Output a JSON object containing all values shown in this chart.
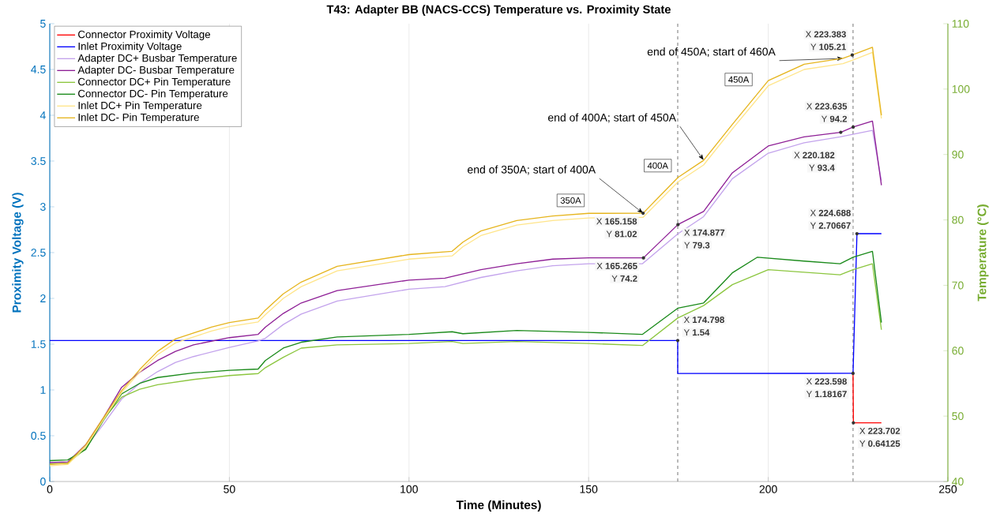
{
  "chart_data": {
    "type": "line",
    "title": "T43: Adapter BB (NACS-CCS) Temperature vs. Proximity State",
    "xlabel": "Time (Minutes)",
    "ylabel": "Proximity Voltage (V)",
    "y2label": "Temperature (°C)",
    "xlim": [
      0,
      250
    ],
    "ylim": [
      0,
      5
    ],
    "y2lim": [
      40,
      110
    ],
    "xticks": [
      0,
      50,
      100,
      150,
      200,
      250
    ],
    "yticks": [
      0,
      0.5,
      1,
      1.5,
      2,
      2.5,
      3,
      3.5,
      4,
      4.5,
      5
    ],
    "y2ticks": [
      40,
      50,
      60,
      70,
      80,
      90,
      100,
      110
    ],
    "grid": "x",
    "legend": "top left",
    "series": [
      {
        "name": "Connector Proximity Voltage",
        "color": "#ff0000",
        "x": [
          223.598,
          223.702,
          231.5
        ],
        "values": [
          1.18167,
          0.64125,
          0.64125
        ]
      },
      {
        "name": "Inlet Proximity Voltage",
        "color": "#0000ff",
        "x": [
          0,
          174.798,
          174.8,
          223.598,
          224.688,
          231.5
        ],
        "values": [
          1.54,
          1.54,
          1.18,
          1.18167,
          2.70667,
          2.70667
        ]
      },
      {
        "name": "Adapter DC+ Busbar Temperature",
        "color": "#c3a3ec",
        "axis": "y2",
        "x": [
          0,
          5,
          10,
          15,
          20,
          25,
          30,
          35,
          40,
          50,
          58,
          60,
          65,
          70,
          80,
          100,
          110,
          120,
          130,
          140,
          150,
          165,
          174.9,
          182,
          190,
          200,
          210,
          220,
          223.6,
          229,
          231.5
        ],
        "values": [
          42.7,
          42.8,
          45.2,
          48.8,
          52.6,
          55.0,
          56.8,
          58.2,
          59.1,
          60.5,
          61.5,
          61.9,
          64.0,
          65.6,
          67.6,
          69.4,
          69.8,
          71.2,
          72.2,
          73.0,
          73.3,
          73.3,
          77.9,
          80.5,
          86.3,
          90.2,
          91.8,
          92.7,
          93.1,
          93.7,
          86.0
        ]
      },
      {
        "name": "Adapter DC- Busbar Temperature",
        "color": "#8e1f96",
        "axis": "y2",
        "x": [
          0,
          5,
          10,
          15,
          20,
          25,
          30,
          35,
          40,
          50,
          58,
          60,
          65,
          70,
          80,
          100,
          110,
          120,
          130,
          140,
          150,
          165.265,
          174.877,
          182,
          190,
          200,
          210,
          220.182,
          223.635,
          229,
          231.5
        ],
        "values": [
          42.9,
          43.0,
          45.6,
          49.8,
          54.4,
          56.7,
          58.5,
          59.9,
          60.9,
          62.0,
          62.5,
          63.6,
          65.7,
          67.3,
          69.2,
          70.8,
          71.1,
          72.4,
          73.3,
          74.0,
          74.2,
          74.2,
          79.3,
          81.3,
          87.2,
          91.3,
          92.7,
          93.4,
          94.2,
          95.1,
          85.3
        ]
      },
      {
        "name": "Connector DC+ Pin Temperature",
        "color": "#8cc63f",
        "axis": "y2",
        "x": [
          0,
          5,
          10,
          15,
          20,
          25,
          30,
          40,
          50,
          58,
          60,
          65,
          70,
          80,
          100,
          112,
          115,
          130,
          150,
          165,
          174.8,
          182,
          190,
          200,
          210,
          220,
          223.6,
          229,
          231.5
        ],
        "values": [
          42.7,
          42.8,
          45.0,
          49.6,
          52.9,
          54.1,
          54.8,
          55.6,
          56.2,
          56.5,
          57.4,
          59.0,
          60.4,
          60.9,
          61.1,
          61.4,
          61.1,
          61.4,
          61.1,
          60.8,
          65.0,
          66.9,
          70.1,
          72.4,
          72.0,
          71.6,
          72.4,
          73.3,
          63.2
        ]
      },
      {
        "name": "Connector DC- Pin Temperature",
        "color": "#1a8a1a",
        "axis": "y2",
        "x": [
          0,
          5,
          10,
          15,
          20,
          25,
          30,
          40,
          50,
          58,
          60,
          65,
          70,
          80,
          100,
          112,
          115,
          130,
          150,
          165,
          174.8,
          182,
          190,
          197,
          210,
          220,
          223.6,
          229,
          231.5
        ],
        "values": [
          43.2,
          43.3,
          44.9,
          49.4,
          53.4,
          55.0,
          55.9,
          56.6,
          57.0,
          57.2,
          58.5,
          60.4,
          61.3,
          62.1,
          62.5,
          62.9,
          62.6,
          63.1,
          62.8,
          62.5,
          66.5,
          67.3,
          71.9,
          74.3,
          73.7,
          73.3,
          74.3,
          75.2,
          64.3
        ]
      },
      {
        "name": "Inlet DC+ Pin Temperature",
        "color": "#ffe58a",
        "axis": "y2",
        "x": [
          0,
          5,
          10,
          15,
          20,
          25,
          30,
          35,
          40,
          45,
          50,
          58,
          60,
          65,
          70,
          80,
          100,
          112,
          115,
          120,
          130,
          140,
          150,
          165.158,
          174.877,
          182,
          190,
          200,
          210,
          220.8,
          223.383,
          229,
          231.5
        ],
        "values": [
          42.4,
          42.6,
          45.3,
          49.5,
          53.6,
          56.7,
          59.4,
          61.2,
          62.1,
          63.0,
          63.7,
          64.4,
          65.5,
          68.0,
          69.8,
          72.2,
          74.0,
          74.5,
          75.9,
          77.6,
          79.2,
          79.9,
          80.3,
          80.4,
          85.8,
          88.4,
          93.9,
          100.5,
          103.0,
          103.9,
          104.4,
          105.6,
          95.5
        ]
      },
      {
        "name": "Inlet DC- Pin Temperature",
        "color": "#e6b51e",
        "axis": "y2",
        "x": [
          0,
          5,
          10,
          15,
          20,
          25,
          30,
          35,
          40,
          45,
          50,
          58,
          60,
          65,
          70,
          80,
          100,
          112,
          115,
          120,
          130,
          140,
          150,
          165.158,
          174.877,
          182,
          190,
          200,
          210,
          220.8,
          223.383,
          229,
          231.5
        ],
        "values": [
          42.6,
          42.8,
          45.6,
          49.8,
          53.9,
          57.1,
          59.9,
          61.8,
          62.7,
          63.6,
          64.3,
          65.0,
          66.2,
          68.7,
          70.5,
          72.9,
          74.7,
          75.2,
          76.6,
          78.3,
          79.9,
          80.6,
          81.0,
          81.02,
          86.5,
          89.1,
          94.6,
          101.3,
          103.8,
          104.7,
          105.21,
          106.4,
          96.0
        ]
      }
    ],
    "ref_lines": [
      {
        "axis": "x",
        "value": 174.8,
        "color": "#7f7f7f",
        "line_style": "dashed"
      },
      {
        "axis": "x",
        "value": 223.6,
        "color": "#7f7f7f",
        "line_style": "dashed"
      }
    ],
    "annotations": [
      {
        "text": "end of 350A; start of 400A",
        "x": 165.158,
        "y": 2.93
      },
      {
        "text": "end of 400A; start of 450A",
        "x": 182,
        "y": 3.51
      },
      {
        "text": "end of 450A; start of 460A",
        "x": 220.8,
        "y": 4.62
      },
      "350A",
      "400A",
      "450A",
      "X **165.158**",
      "Y **81.02**",
      "X **165.265**",
      "Y **74.2**",
      "X **174.877**",
      "Y **79.3**",
      {
        "text": "X **174.798**",
        "x": 174.798,
        "y": 1.54
      },
      {
        "text": "Y **1.54**",
        "x": 174.798,
        "y": 1.54
      },
      "X **223.383**",
      "Y **105.21**",
      "X **223.635**",
      "Y **94.2**",
      "X **220.182**",
      "Y **93.4**",
      {
        "text": "X **224.688**",
        "x": 224.688,
        "y": 2.70667
      },
      {
        "text": "Y **2.70667**",
        "x": 224.688,
        "y": 2.70667
      },
      {
        "text": "X **223.598**",
        "x": 223.598,
        "y": 1.18167
      },
      {
        "text": "Y **1.18167**",
        "x": 223.598,
        "y": 1.18167
      },
      {
        "text": "X **223.702**",
        "x": 223.702,
        "y": 0.64125
      },
      {
        "text": "Y **0.64125**",
        "x": 223.702,
        "y": 0.64125
      }
    ]
  }
}
